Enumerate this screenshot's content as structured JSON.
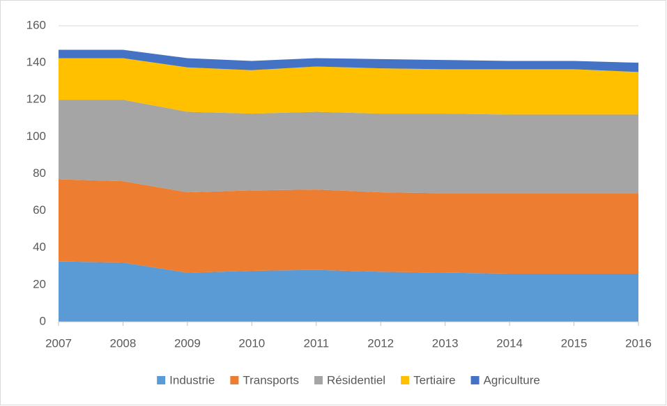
{
  "chart_data": {
    "type": "stacked_area",
    "categories": [
      "2007",
      "2008",
      "2009",
      "2010",
      "2011",
      "2012",
      "2013",
      "2014",
      "2015",
      "2016"
    ],
    "series": [
      {
        "name": "Industrie",
        "color": "#5b9bd5",
        "values": [
          32.5,
          32,
          26.5,
          27.5,
          28,
          27,
          26.5,
          26,
          26,
          26
        ]
      },
      {
        "name": "Transports",
        "color": "#ed7d31",
        "values": [
          44.5,
          44,
          43.5,
          43.5,
          43.5,
          43,
          43,
          43.5,
          43.5,
          43.5
        ]
      },
      {
        "name": "Résidentiel",
        "color": "#a5a5a5",
        "values": [
          43,
          44,
          43.5,
          41.5,
          42,
          42.5,
          43,
          42.5,
          42.5,
          42.5
        ]
      },
      {
        "name": "Tertiaire",
        "color": "#ffc000",
        "values": [
          22.5,
          22.5,
          24,
          23.5,
          24.5,
          24.5,
          24,
          24.5,
          24.5,
          23
        ]
      },
      {
        "name": "Agriculture",
        "color": "#4472c4",
        "values": [
          4.5,
          4.5,
          5,
          5,
          4.5,
          5,
          5,
          4.5,
          4.5,
          5
        ]
      }
    ],
    "ylim": [
      0,
      160
    ],
    "yticks": [
      0,
      20,
      40,
      60,
      80,
      100,
      120,
      140,
      160
    ],
    "grid": true,
    "legend": "bottom"
  }
}
